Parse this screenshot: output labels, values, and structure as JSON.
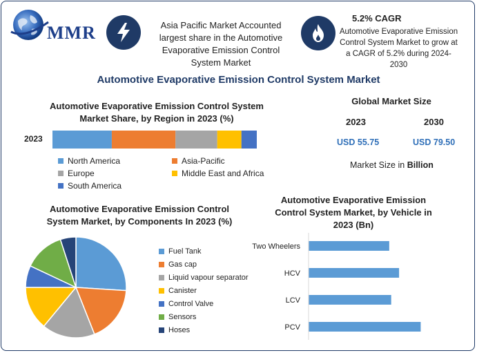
{
  "header": {
    "logo_text": "MMR",
    "callout_1": "Asia Pacific Market Accounted largest share in the Automotive Evaporative Emission Control System Market",
    "callout_2_title": "5.2% CAGR",
    "callout_2": "Automotive Evaporative Emission Control System Market to grow at a CAGR of 5.2% during 2024-2030"
  },
  "main_title": "Automotive Evaporative Emission Control System Market",
  "market_size": {
    "title": "Global Market Size",
    "year_1": "2023",
    "year_2": "2030",
    "value_1": "USD 55.75",
    "value_2": "USD 79.50",
    "note_prefix": "Market Size in",
    "note_unit": "Billion"
  },
  "chart_data": [
    {
      "type": "bar",
      "orientation": "horizontal-stacked",
      "title": "Automotive Evaporative Emission Control System Market Share, by Region in 2023 (%)",
      "categories": [
        "2023"
      ],
      "series": [
        {
          "name": "North America",
          "values": [
            27
          ],
          "color": "#5b9bd5"
        },
        {
          "name": "Asia-Pacific",
          "values": [
            29
          ],
          "color": "#ed7d31"
        },
        {
          "name": "Europe",
          "values": [
            19
          ],
          "color": "#a5a5a5"
        },
        {
          "name": "Middle East and Africa",
          "values": [
            11
          ],
          "color": "#ffc000"
        },
        {
          "name": "South America",
          "values": [
            7
          ],
          "color": "#4472c4"
        }
      ],
      "legend": "bottom"
    },
    {
      "type": "pie",
      "title": "Automotive Evaporative Emission Control System Market, by Components In 2023 (%)",
      "labels": [
        "Fuel Tank",
        "Gas cap",
        "Liquid vapour separator",
        "Canister",
        "Control Valve",
        "Sensors",
        "Hoses"
      ],
      "values": [
        26,
        18,
        17,
        14,
        7,
        13,
        5
      ],
      "colors": [
        "#5b9bd5",
        "#ed7d31",
        "#a5a5a5",
        "#ffc000",
        "#4472c4",
        "#70ad47",
        "#264478"
      ],
      "legend": "right"
    },
    {
      "type": "bar",
      "orientation": "horizontal",
      "title": "Automotive Evaporative Emission Control System Market, by Vehicle in 2023 (Bn)",
      "categories": [
        "Two Wheelers",
        "HCV",
        "LCV",
        "PCV"
      ],
      "values": [
        12.3,
        13.8,
        12.6,
        17.1
      ],
      "xlim": [
        0,
        20
      ],
      "color": "#5b9bd5"
    }
  ]
}
